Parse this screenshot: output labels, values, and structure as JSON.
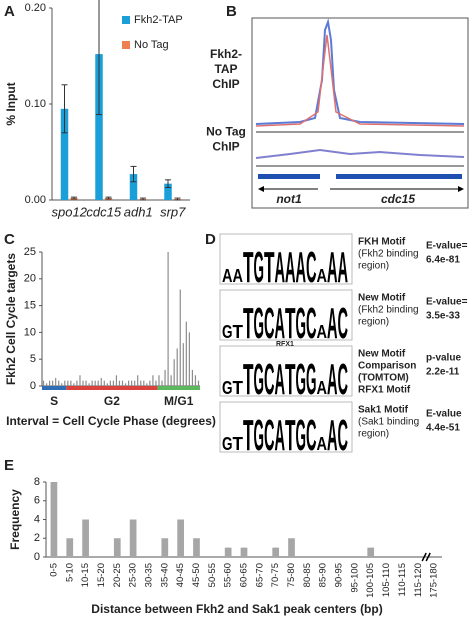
{
  "panel_labels": [
    "A",
    "B",
    "C",
    "D",
    "E"
  ],
  "chart_data": [
    {
      "type": "bar",
      "y_label": "% Input",
      "categories": [
        "spo12",
        "cdc15",
        "adh1",
        "srp7"
      ],
      "series": [
        {
          "name": "Fkh2-TAP",
          "color": "#1a9fd9",
          "values": [
            0.095,
            0.152,
            0.027,
            0.017
          ],
          "errors": [
            0.025,
            0.063,
            0.008,
            0.004
          ]
        },
        {
          "name": "No Tag",
          "color": "#f07f4f",
          "values": [
            0.002,
            0.002,
            0.001,
            0.001
          ],
          "errors": [
            0.001,
            0.001,
            0.001,
            0.001
          ]
        }
      ],
      "ylim": [
        0,
        0.2
      ],
      "yticks": [
        {
          "value": 0,
          "label": "0.00"
        },
        {
          "value": 0.1,
          "label": "0.10"
        },
        {
          "value": 0.2,
          "label": "0.20"
        }
      ],
      "legend": "top-right"
    },
    {
      "type": "bar",
      "y_label": "Fkh2 Cell Cycle targets",
      "x_label": "Interval = Cell Cycle Phase (degrees)",
      "bar_color": "#8c8c8c",
      "series": [
        {
          "name": "S",
          "color": "#2f6db5",
          "values": [
            1,
            0.5,
            1,
            1,
            1.5,
            1,
            0.5,
            1
          ]
        },
        {
          "name": "G2",
          "color": "#d9433b",
          "values": [
            1,
            1,
            0.5,
            1,
            2,
            1,
            1,
            0.5,
            1,
            1,
            1,
            1.5,
            1,
            0.5,
            1,
            1,
            2,
            1,
            1,
            0.5,
            1,
            1,
            1,
            2,
            1,
            1,
            0.5,
            1,
            2,
            1
          ]
        },
        {
          "name": "M/G1",
          "color": "#5cb85c",
          "values": [
            2,
            1,
            3,
            25,
            2,
            5,
            7,
            18,
            8,
            12,
            10,
            3,
            2,
            1
          ]
        }
      ],
      "ylim": [
        0,
        25
      ],
      "yticks": [
        0,
        5,
        10,
        15,
        20,
        25
      ]
    },
    {
      "type": "bar",
      "y_label": "Frequency",
      "x_label": "Distance between Fkh2 and Sak1 peak centers (bp)",
      "categories": [
        "0-5",
        "5-10",
        "10-15",
        "15-20",
        "20-25",
        "25-30",
        "30-35",
        "35-40",
        "40-45",
        "45-50",
        "50-55",
        "55-60",
        "60-65",
        "65-70",
        "70-75",
        "75-80",
        "80-85",
        "85-90",
        "90-95",
        "95-100",
        "100-105",
        "105-110",
        "110-115",
        "115-120",
        "175-180"
      ],
      "values": [
        8,
        2,
        4,
        0,
        2,
        4,
        0,
        2,
        4,
        2,
        0,
        1,
        1,
        0,
        1,
        2,
        0,
        0,
        0,
        0,
        1,
        0,
        0,
        0,
        0
      ],
      "color": "#a6a6a6",
      "ylim": [
        0,
        8
      ],
      "yticks": [
        0,
        2,
        4,
        6,
        8
      ],
      "axis_break": true
    }
  ],
  "panel_b": {
    "tracks": [
      {
        "label": [
          "Fkh2-",
          "TAP",
          "ChIP"
        ]
      },
      {
        "label": [
          "No Tag",
          "ChIP"
        ]
      }
    ],
    "genes": [
      "not1",
      "cdc15"
    ]
  },
  "panel_d": {
    "rows": [
      {
        "logo": [
          "A",
          "A",
          "T",
          "G",
          "T",
          "A",
          "A",
          "A",
          "C",
          "A",
          "A",
          "A"
        ],
        "name": [
          "FKH Motif"
        ],
        "desc": [
          "(Fkh2 binding",
          "region)"
        ],
        "stat": "E-value=",
        "value": "6.4e-81"
      },
      {
        "logo": [
          "G",
          "T",
          "T",
          "G",
          "C",
          "A",
          "T",
          "G",
          "C",
          "A",
          "A",
          "C"
        ],
        "name": [
          "New Motif"
        ],
        "desc": [
          "(Fkh2 binding",
          "region)"
        ],
        "stat": "E-value=",
        "value": "3.5e-33"
      },
      {
        "logo": [
          "G",
          "T",
          "T",
          "G",
          "C",
          "A",
          "T",
          "G",
          "G",
          "A",
          "A",
          "C"
        ],
        "tag": "RFX1",
        "name": [
          "New Motif",
          "Comparison",
          "(TOMTOM)",
          "RFX1 Motif"
        ],
        "stat": "p-value",
        "value": "2.2e-11"
      },
      {
        "logo": [
          "G",
          "T",
          "T",
          "G",
          "C",
          "A",
          "T",
          "G",
          "C",
          "A",
          "A",
          "C"
        ],
        "name": [
          "Sak1 Motif"
        ],
        "desc": [
          "(Sak1 binding",
          "region)"
        ],
        "stat": "E-value",
        "value": "4.4e-51"
      }
    ]
  }
}
